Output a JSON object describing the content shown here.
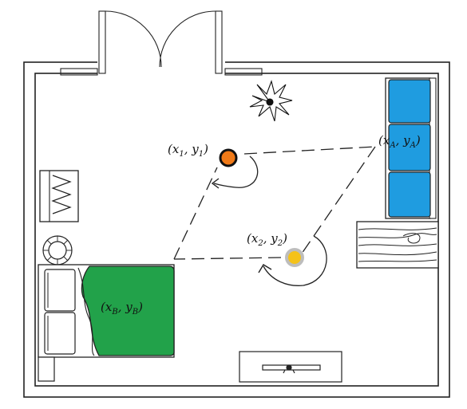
{
  "labels": {
    "pos1": {
      "var": "x",
      "sub": "1",
      "var2": "y",
      "sub2": "1"
    },
    "pos2": {
      "var": "x",
      "sub": "2",
      "var2": "y",
      "sub2": "2"
    },
    "posA": {
      "var": "x",
      "sub": "A",
      "var2": "y",
      "sub2": "A"
    },
    "posB": {
      "var": "x",
      "sub": "B",
      "var2": "y",
      "sub2": "B"
    }
  },
  "colors": {
    "sofa": "#1f9ce0",
    "bed": "#22a24a",
    "device1_fill": "#f07a18",
    "device1_ring": "#111111",
    "device2_fill": "#f4c21a",
    "device2_ring": "#bdbdbd",
    "outline": "#222222"
  },
  "icons": {
    "plant": "plant-icon",
    "door": "double-door-icon",
    "tv": "tv-icon"
  }
}
